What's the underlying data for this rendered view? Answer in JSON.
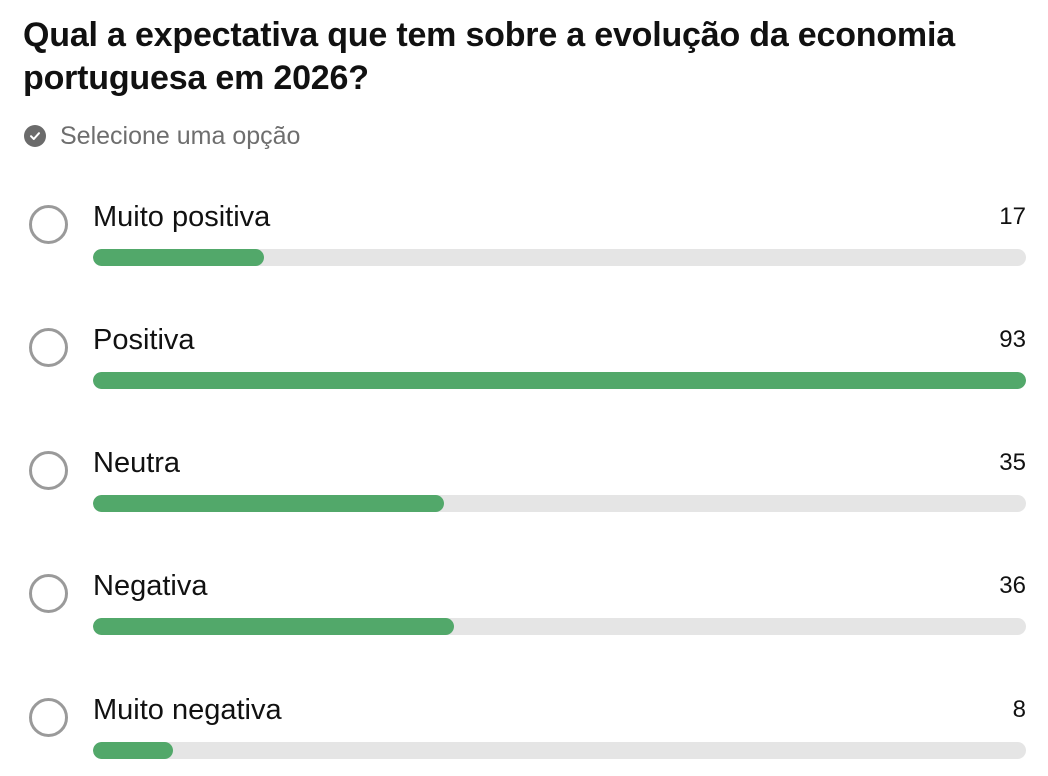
{
  "poll": {
    "question": "Qual a expectativa que tem sobre a evolução da economia portuguesa em 2026?",
    "hint": "Selecione uma opção",
    "hint_icon": "check-circle-icon",
    "accent_color": "#52a86a",
    "track_color": "#e5e5e5",
    "options": [
      {
        "label": "Muito positiva",
        "count": "17",
        "value": 17
      },
      {
        "label": "Positiva",
        "count": "93",
        "value": 93
      },
      {
        "label": "Neutra",
        "count": "35",
        "value": 35
      },
      {
        "label": "Negativa",
        "count": "36",
        "value": 36
      },
      {
        "label": "Muito negativa",
        "count": "8",
        "value": 8
      }
    ]
  }
}
